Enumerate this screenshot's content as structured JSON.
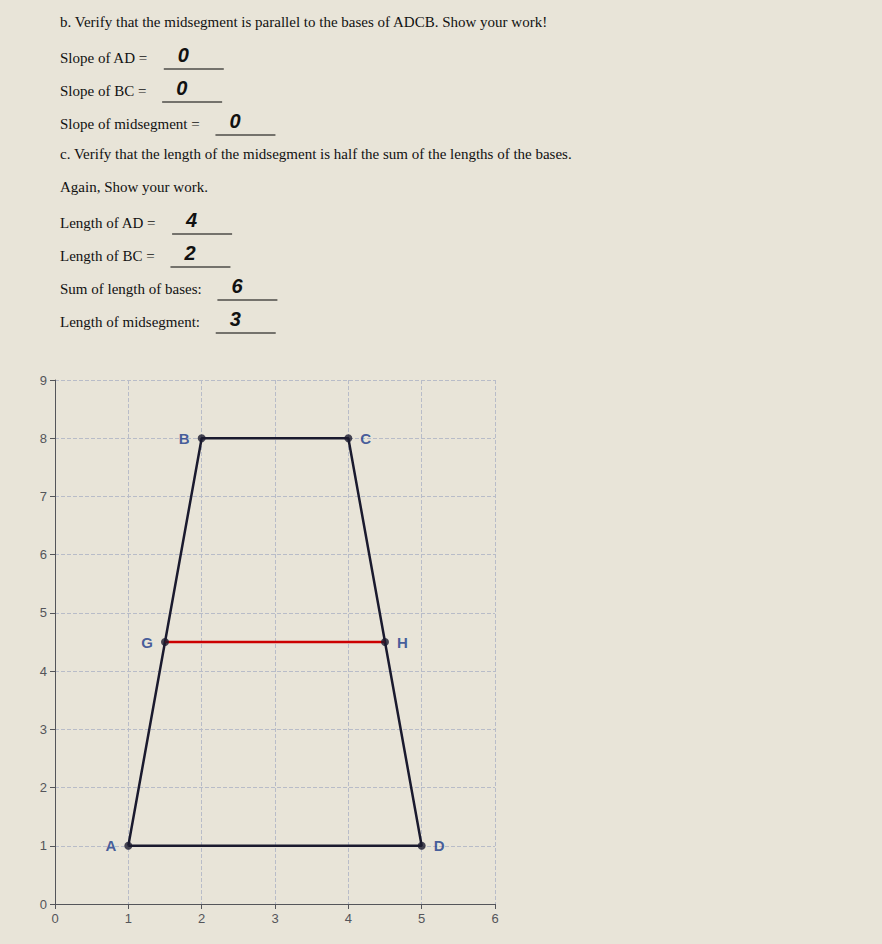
{
  "chart_data": {
    "type": "line",
    "annotations": [
      "b. Verify that the midsegment is parallel to the bases of ADCB. Show your work!",
      {
        "label": "Slope of AD = ",
        "value": 0
      },
      {
        "label": "Slope of BC = ",
        "value": 0
      },
      {
        "label": "Slope of midsegment = ",
        "value": 0
      },
      "c. Verify that the length of the midsegment is half the sum of the lengths of the bases.",
      "Again, Show your work.",
      {
        "label": "Length of AD = ",
        "value": 4
      },
      {
        "label": "Length of BC = ",
        "value": 2
      },
      {
        "label": "Sum of length of bases: ",
        "value": 6
      },
      {
        "label": "Length of midsegment: ",
        "value": 3
      }
    ],
    "series": [
      {
        "type": "line",
        "color": "#1a1a2e",
        "x": [
          1,
          2,
          4,
          5,
          1
        ],
        "values": [
          1,
          8,
          8,
          1,
          1
        ]
      },
      {
        "type": "line",
        "color": "#cc0000",
        "x": [
          1.5,
          4.5
        ],
        "values": [
          4.5,
          4.5
        ]
      },
      {
        "type": "scatter",
        "marker": "circle",
        "color": "#1a1a2e",
        "data_labels": true,
        "x": [
          1,
          5,
          2,
          4,
          1.5,
          4.5
        ],
        "values": [
          1,
          1,
          8,
          8,
          4.5,
          4.5
        ],
        "value_labels": [
          "A",
          "D",
          "B",
          "C",
          "G",
          "H"
        ]
      }
    ],
    "xlim": [
      0,
      6
    ],
    "xticks": [
      0,
      1,
      2,
      3,
      4,
      5,
      6
    ],
    "ylim": [
      0,
      9
    ],
    "yticks": [
      0,
      1,
      2,
      3,
      4,
      5,
      6,
      7,
      8,
      9
    ],
    "grid": true
  }
}
